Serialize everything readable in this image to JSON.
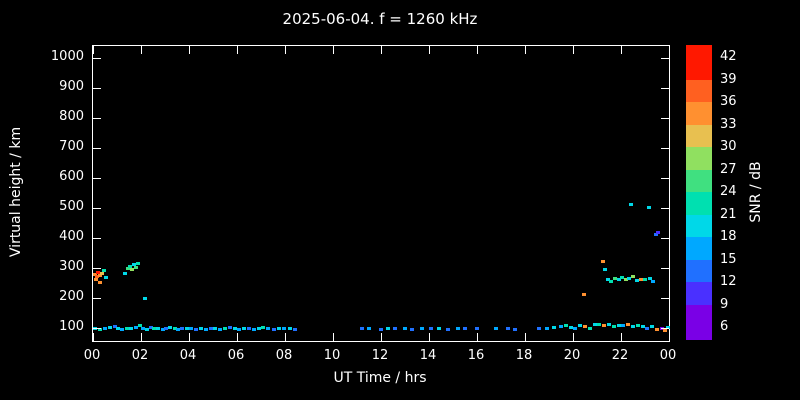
{
  "title": "2025-06-04. f = 1260 kHz",
  "axes": {
    "x_label": "UT Time / hrs",
    "y_label": "Virtual height / km",
    "x_ticks": [
      "00",
      "02",
      "04",
      "06",
      "08",
      "10",
      "12",
      "14",
      "16",
      "18",
      "20",
      "22",
      "00"
    ],
    "y_ticks": [
      "100",
      "200",
      "300",
      "400",
      "500",
      "600",
      "700",
      "800",
      "900",
      "1000"
    ],
    "cb_ticks": [
      "6",
      "9",
      "12",
      "15",
      "18",
      "21",
      "24",
      "27",
      "30",
      "33",
      "36",
      "39",
      "42"
    ]
  },
  "chart_data": {
    "type": "scatter",
    "title": "2025-06-04. f = 1260 kHz",
    "xlabel": "UT Time / hrs",
    "ylabel": "Virtual height / km",
    "xlim": [
      0,
      24
    ],
    "ylim": [
      60,
      1040
    ],
    "grid": false,
    "background": "#000000",
    "colorbar": {
      "label": "SNR / dB",
      "range": [
        6,
        42
      ],
      "tick_step": 3,
      "colors": [
        "#7a00e6",
        "#4a30ff",
        "#2070ff",
        "#00a8ff",
        "#00d8e8",
        "#00e0b0",
        "#40e080",
        "#90e060",
        "#e8c050",
        "#ff9030",
        "#ff6020",
        "#ff1800"
      ]
    },
    "points_format": [
      "ut_hours",
      "virtual_height_km",
      "snr_db"
    ],
    "points": [
      [
        0.08,
        280,
        34
      ],
      [
        0.15,
        272,
        37
      ],
      [
        0.2,
        288,
        40
      ],
      [
        0.3,
        278,
        34
      ],
      [
        0.38,
        284,
        31
      ],
      [
        0.12,
        262,
        34
      ],
      [
        0.45,
        292,
        22
      ],
      [
        0.55,
        270,
        19
      ],
      [
        0.3,
        255,
        34
      ],
      [
        1.35,
        282,
        19
      ],
      [
        1.45,
        300,
        25
      ],
      [
        1.55,
        308,
        22
      ],
      [
        1.62,
        296,
        28
      ],
      [
        1.7,
        312,
        19
      ],
      [
        1.78,
        302,
        25
      ],
      [
        1.88,
        316,
        22
      ],
      [
        2.15,
        200,
        19
      ],
      [
        0.1,
        100,
        19
      ],
      [
        0.3,
        97,
        22
      ],
      [
        0.5,
        101,
        16
      ],
      [
        0.7,
        104,
        19
      ],
      [
        0.9,
        108,
        13
      ],
      [
        1.05,
        100,
        19
      ],
      [
        1.2,
        98,
        16
      ],
      [
        1.4,
        101,
        22
      ],
      [
        1.6,
        99,
        19
      ],
      [
        1.8,
        103,
        16
      ],
      [
        1.95,
        110,
        22
      ],
      [
        2.1,
        100,
        16
      ],
      [
        2.25,
        97,
        19
      ],
      [
        2.4,
        104,
        13
      ],
      [
        2.55,
        100,
        22
      ],
      [
        2.7,
        99,
        19
      ],
      [
        2.9,
        97,
        16
      ],
      [
        3.05,
        100,
        13
      ],
      [
        3.2,
        102,
        19
      ],
      [
        3.4,
        100,
        22
      ],
      [
        3.55,
        97,
        16
      ],
      [
        3.7,
        100,
        13
      ],
      [
        3.9,
        99,
        19
      ],
      [
        4.1,
        101,
        16
      ],
      [
        4.3,
        98,
        13
      ],
      [
        4.5,
        100,
        19
      ],
      [
        4.7,
        97,
        16
      ],
      [
        4.9,
        100,
        13
      ],
      [
        5.1,
        101,
        19
      ],
      [
        5.3,
        98,
        16
      ],
      [
        5.5,
        100,
        22
      ],
      [
        5.7,
        103,
        13
      ],
      [
        5.9,
        100,
        19
      ],
      [
        6.1,
        97,
        16
      ],
      [
        6.3,
        100,
        19
      ],
      [
        6.5,
        99,
        13
      ],
      [
        6.7,
        97,
        16
      ],
      [
        6.9,
        100,
        19
      ],
      [
        7.1,
        102,
        22
      ],
      [
        7.3,
        100,
        16
      ],
      [
        7.55,
        98,
        13
      ],
      [
        7.75,
        100,
        19
      ],
      [
        7.95,
        99,
        16
      ],
      [
        8.2,
        100,
        19
      ],
      [
        8.4,
        98,
        13
      ],
      [
        11.2,
        99,
        13
      ],
      [
        11.5,
        100,
        16
      ],
      [
        12.0,
        98,
        13
      ],
      [
        12.3,
        100,
        19
      ],
      [
        12.6,
        99,
        13
      ],
      [
        13.0,
        100,
        16
      ],
      [
        13.3,
        98,
        13
      ],
      [
        13.7,
        100,
        16
      ],
      [
        14.1,
        99,
        13
      ],
      [
        14.4,
        100,
        19
      ],
      [
        14.8,
        98,
        13
      ],
      [
        15.2,
        100,
        16
      ],
      [
        15.5,
        99,
        13
      ],
      [
        16.0,
        100,
        13
      ],
      [
        16.8,
        99,
        16
      ],
      [
        17.3,
        100,
        13
      ],
      [
        17.6,
        98,
        13
      ],
      [
        18.6,
        100,
        13
      ],
      [
        18.9,
        99,
        16
      ],
      [
        19.2,
        103,
        19
      ],
      [
        19.5,
        108,
        16
      ],
      [
        19.7,
        110,
        22
      ],
      [
        19.9,
        104,
        19
      ],
      [
        20.1,
        100,
        16
      ],
      [
        20.3,
        111,
        19
      ],
      [
        20.5,
        106,
        34
      ],
      [
        20.7,
        100,
        22
      ],
      [
        20.9,
        112,
        19
      ],
      [
        21.1,
        114,
        22
      ],
      [
        21.3,
        110,
        34
      ],
      [
        21.5,
        112,
        19
      ],
      [
        21.7,
        108,
        22
      ],
      [
        21.9,
        111,
        19
      ],
      [
        22.1,
        110,
        16
      ],
      [
        22.3,
        112,
        34
      ],
      [
        22.5,
        108,
        19
      ],
      [
        22.7,
        110,
        22
      ],
      [
        22.9,
        106,
        19
      ],
      [
        23.1,
        100,
        13
      ],
      [
        23.3,
        108,
        19
      ],
      [
        23.5,
        96,
        34
      ],
      [
        23.7,
        100,
        8
      ],
      [
        23.85,
        92,
        34
      ],
      [
        23.95,
        103,
        19
      ],
      [
        20.45,
        215,
        34
      ],
      [
        21.25,
        322,
        34
      ],
      [
        21.35,
        298,
        19
      ],
      [
        21.45,
        263,
        19
      ],
      [
        21.6,
        258,
        22
      ],
      [
        21.75,
        268,
        25
      ],
      [
        21.9,
        264,
        19
      ],
      [
        22.05,
        270,
        22
      ],
      [
        22.2,
        262,
        28
      ],
      [
        22.35,
        268,
        19
      ],
      [
        22.5,
        272,
        28
      ],
      [
        22.65,
        260,
        19
      ],
      [
        22.85,
        265,
        34
      ],
      [
        23.0,
        262,
        22
      ],
      [
        23.2,
        268,
        19
      ],
      [
        23.35,
        258,
        16
      ],
      [
        22.4,
        515,
        19
      ],
      [
        23.15,
        505,
        19
      ],
      [
        23.45,
        412,
        13
      ],
      [
        23.55,
        420,
        10
      ]
    ]
  }
}
